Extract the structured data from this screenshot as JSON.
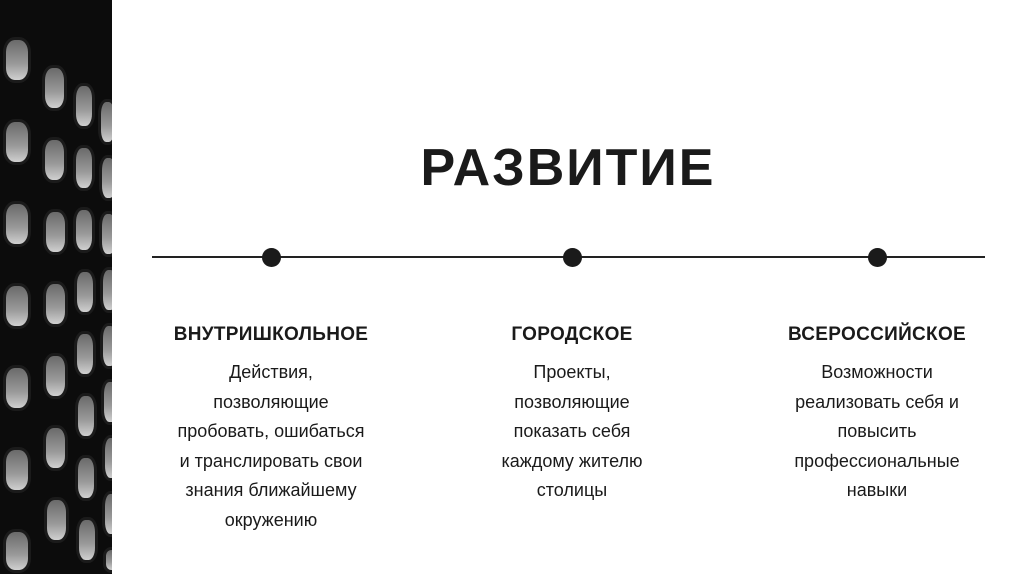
{
  "title": "РАЗВИТИЕ",
  "columns": [
    {
      "heading": "ВНУТРИШКОЛЬНОЕ",
      "lines": [
        "Действия,",
        "позволяющие",
        "пробовать, ошибаться",
        "и транслировать свои",
        "знания ближайшему",
        "окружению"
      ]
    },
    {
      "heading": "ГОРОДСКОЕ",
      "lines": [
        "Проекты,",
        "позволяющие",
        "показать себя",
        "каждому жителю",
        "столицы"
      ]
    },
    {
      "heading": "ВСЕРОССИЙСКОЕ",
      "lines": [
        "Возможности",
        "реализовать себя и",
        "повысить",
        "профессиональные",
        "навыки"
      ]
    }
  ],
  "colors": {
    "text": "#1a1a1a",
    "background": "#ffffff",
    "photo": "#0c0c0c"
  }
}
